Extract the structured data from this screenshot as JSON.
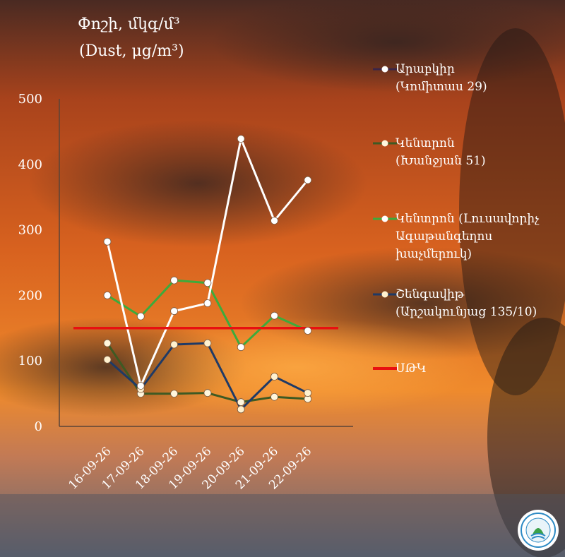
{
  "title": {
    "line1": "Փոշի, մկգ/մ³",
    "line2": "(Dust, μg/m³)"
  },
  "logo_icon": "eco-organization-seal-icon",
  "colors": {
    "sky_top": "#3a2b2a",
    "sky_mid": "#c4521c",
    "sky_glow": "#f08a2a",
    "sky_bottom": "#6f7482"
  },
  "chart_data": {
    "type": "line",
    "categories": [
      "16-09-26",
      "17-09-26",
      "18-09-26",
      "19-09-26",
      "20-09-26",
      "21-09-26",
      "22-09-26"
    ],
    "ylim": [
      0,
      500
    ],
    "yticks": [
      0,
      100,
      200,
      300,
      400,
      500
    ],
    "xlabel": "",
    "ylabel": "",
    "grid": false,
    "legend_position": "right",
    "series": [
      {
        "name": "Արաբկիր (Կոմիտաս 29)",
        "label_line1": "Արաբկիր",
        "label_line2": "(Կոմիտաս 29)",
        "line_color": "#ffffff",
        "marker_color": "#ffffff",
        "legend_line_color": "#3b2547",
        "values": [
          282,
          62,
          176,
          188,
          439,
          314,
          376
        ]
      },
      {
        "name": "Կենտրոն (Խանջյան 51)",
        "label_line1": "Կենտրոն",
        "label_line2": "(Խանջյան 51)",
        "line_color": "#3e5a23",
        "marker_color": "#fff6dc",
        "legend_line_color": "#3e5a23",
        "values": [
          127,
          50,
          50,
          51,
          37,
          45,
          42
        ]
      },
      {
        "name": "Կենտրոն (Լուսավորիչ Ագաթանգեղոս խաչմերուկ)",
        "label_line1": "Կենտրոն (Լուսավորիչ",
        "label_line2": "Ագաթանգեղոս",
        "label_line3": "խաչմերուկ)",
        "line_color": "#3cab3c",
        "marker_color": "#ffffff",
        "legend_line_color": "#3cab3c",
        "values": [
          200,
          168,
          223,
          219,
          121,
          169,
          146
        ]
      },
      {
        "name": "Շենգավիթ (Արշակունյաց 135/10)",
        "label_line1": "Շենգավիթ",
        "label_line2": "(Արշակունյաց 135/10)",
        "line_color": "#1f3a66",
        "marker_color": "#fff1cf",
        "legend_line_color": "#1f3a66",
        "values": [
          102,
          57,
          125,
          127,
          26,
          76,
          51
        ]
      }
    ],
    "reference_line": {
      "name": "ՍԹԿ",
      "value": 150,
      "color": "#e81010"
    }
  }
}
